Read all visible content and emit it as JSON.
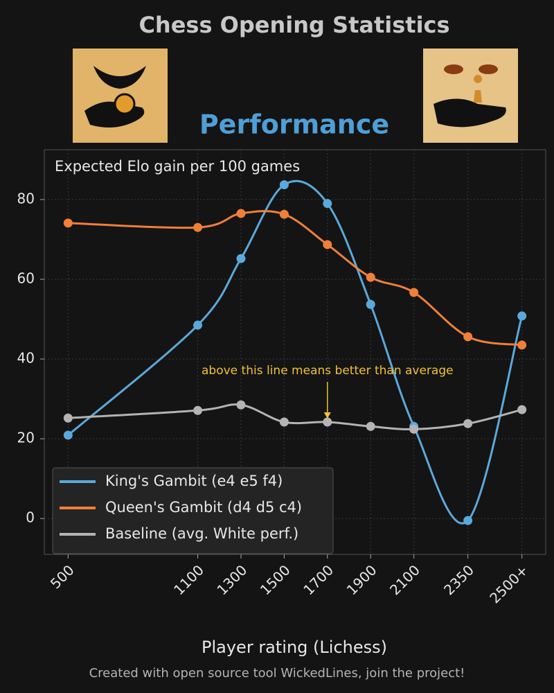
{
  "chart_data": {
    "type": "line",
    "title": "Chess Opening Statistics",
    "subtitle": "Performance",
    "ylabel": "Expected Elo gain per 100 games",
    "xlabel": "Player rating (Lichess)",
    "footer": "Created with open source tool WickedLines, join the project!",
    "annotation": "above this line means better than average",
    "x": [
      500,
      1100,
      1300,
      1500,
      1700,
      1900,
      2100,
      2350,
      2600
    ],
    "xlim": [
      390,
      2710
    ],
    "xticks": [
      500,
      1100,
      1300,
      1500,
      1700,
      1900,
      2100,
      2350,
      {
        "value": 2600,
        "label": "2500+"
      }
    ],
    "ylim": [
      -9,
      92.5
    ],
    "yticks": [
      0,
      20,
      40,
      60,
      80
    ],
    "grid": true,
    "legend": "lower left",
    "series": [
      {
        "name": "King's Gambit (e4 e5 f4)",
        "color": "#5aa9dc",
        "values": [
          20.9,
          48.5,
          65.2,
          83.7,
          79.0,
          53.7,
          23.1,
          -0.5,
          50.8
        ]
      },
      {
        "name": "Queen's Gambit (d4 d5 c4)",
        "color": "#f07f3a",
        "values": [
          74.1,
          73.0,
          76.5,
          76.3,
          68.7,
          60.5,
          56.7,
          45.6,
          43.5
        ]
      },
      {
        "name": "Baseline (avg. White perf.)",
        "color": "#b4b4b4",
        "values": [
          25.2,
          27.1,
          28.5,
          24.2,
          24.2,
          23.1,
          22.4,
          23.8,
          27.3
        ]
      }
    ]
  }
}
